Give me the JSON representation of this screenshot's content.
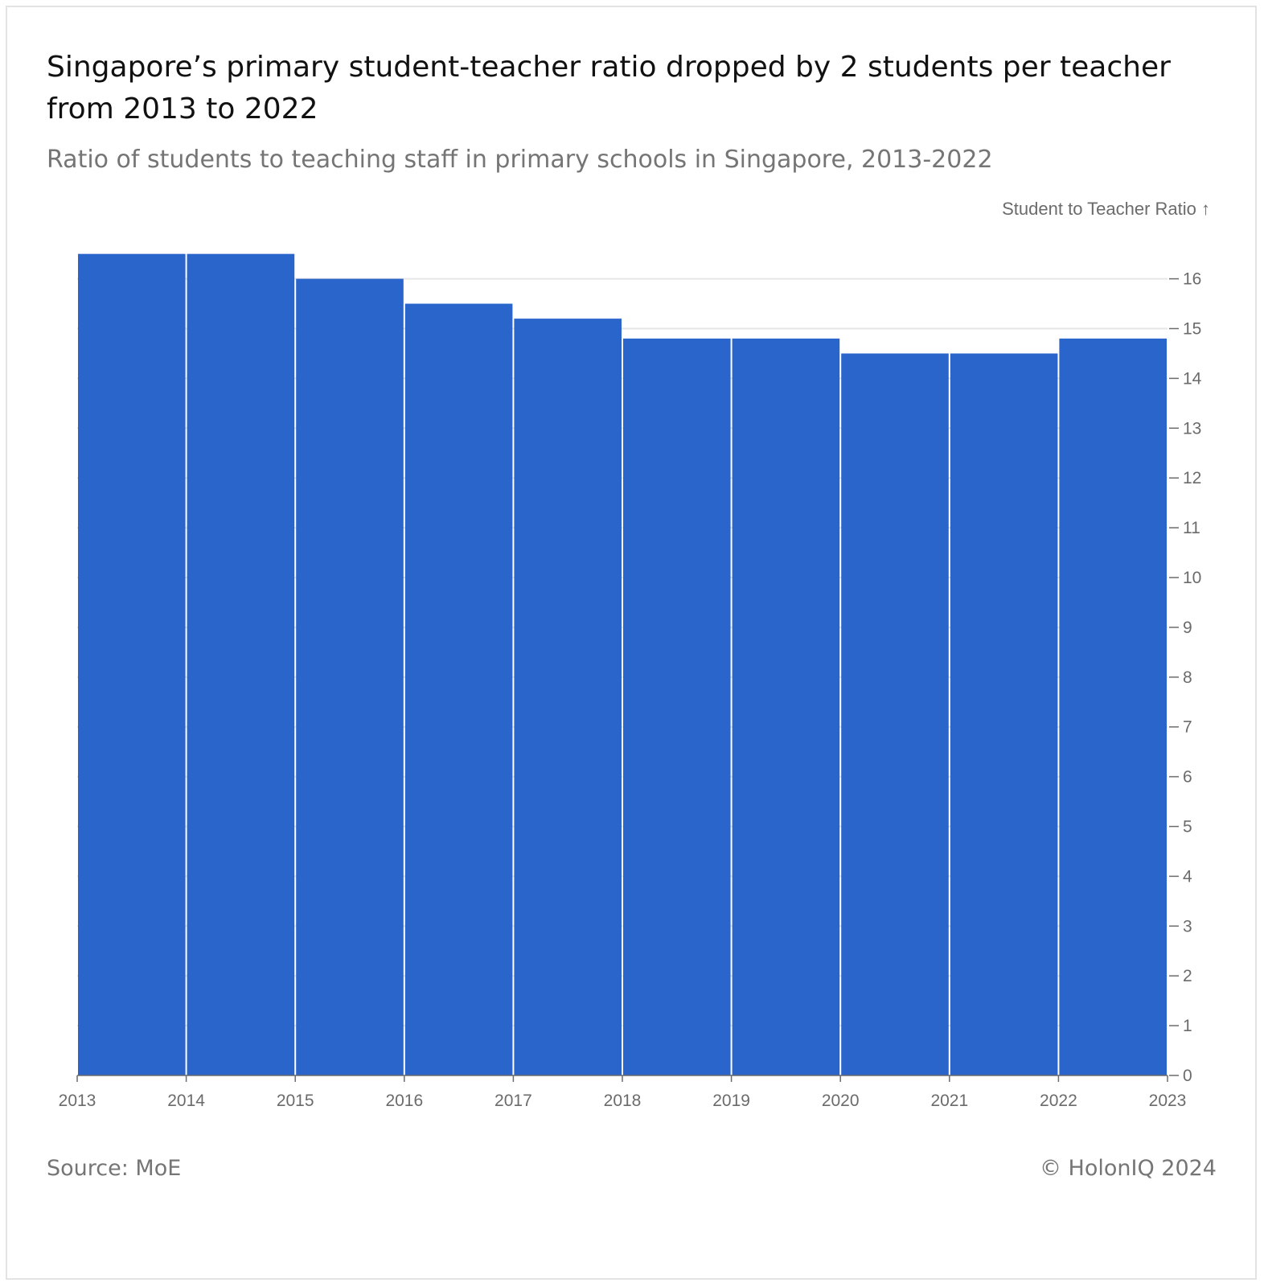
{
  "header": {
    "title": "Singapore’s primary student-teacher ratio dropped by 2 students per teacher from 2013 to 2022",
    "subtitle": "Ratio of students to teaching staff in primary schools in Singapore, 2013-2022"
  },
  "footer": {
    "source": "Source: MoE",
    "credit": "© HolonIQ 2024"
  },
  "colors": {
    "bar": "#2a65cc",
    "grid": "#e6e6e6",
    "axis": "#6b6b6b"
  },
  "chart_data": {
    "type": "bar",
    "title": "Singapore’s primary student-teacher ratio dropped by 2 students per teacher from 2013 to 2022",
    "subtitle": "Ratio of students to teaching staff in primary schools in Singapore, 2013-2022",
    "ylabel": "Student to Teacher Ratio ↑",
    "xlabel": "",
    "x_ticks": [
      "2013",
      "2014",
      "2015",
      "2016",
      "2017",
      "2018",
      "2019",
      "2020",
      "2021",
      "2022",
      "2023"
    ],
    "categories": [
      "2013",
      "2014",
      "2015",
      "2016",
      "2017",
      "2018",
      "2019",
      "2020",
      "2021",
      "2022"
    ],
    "values": [
      16.5,
      16.5,
      16.0,
      15.5,
      15.2,
      14.8,
      14.8,
      14.5,
      14.5,
      14.8
    ],
    "y_ticks": [
      0,
      1,
      2,
      3,
      4,
      5,
      6,
      7,
      8,
      9,
      10,
      11,
      12,
      13,
      14,
      15,
      16
    ],
    "ylim": [
      0,
      16
    ],
    "y_axis_position": "right",
    "grid": true,
    "legend": "none"
  }
}
